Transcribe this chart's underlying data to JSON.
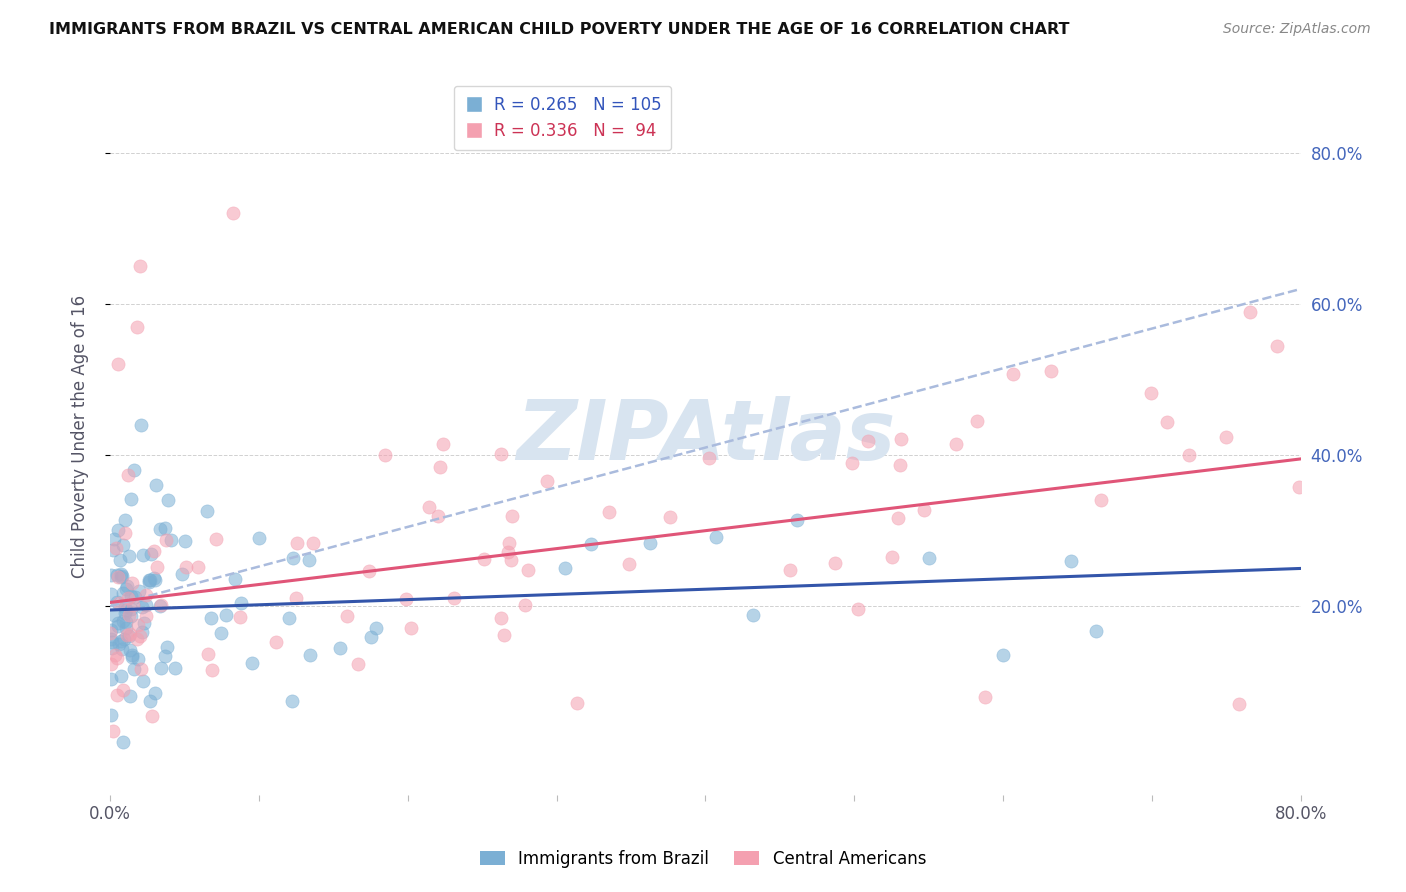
{
  "title": "IMMIGRANTS FROM BRAZIL VS CENTRAL AMERICAN CHILD POVERTY UNDER THE AGE OF 16 CORRELATION CHART",
  "source": "Source: ZipAtlas.com",
  "ylabel": "Child Poverty Under the Age of 16",
  "xlim": [
    0.0,
    0.8
  ],
  "ylim": [
    -0.05,
    0.9
  ],
  "brazil_R": 0.265,
  "brazil_N": 105,
  "central_R": 0.336,
  "central_N": 94,
  "brazil_color": "#7bafd4",
  "central_color": "#f4a0b0",
  "brazil_trend_color": "#3355aa",
  "central_trend_color": "#e05578",
  "dashed_trend_color": "#aabbdd",
  "watermark_text": "ZIPAtlas",
  "watermark_color": "#d8e4f0",
  "brazil_legend_label": "Immigrants from Brazil",
  "central_legend_label": "Central Americans",
  "ytick_labels_right": [
    "20.0%",
    "40.0%",
    "60.0%",
    "80.0%"
  ],
  "ytick_positions": [
    0.2,
    0.4,
    0.6,
    0.8
  ]
}
